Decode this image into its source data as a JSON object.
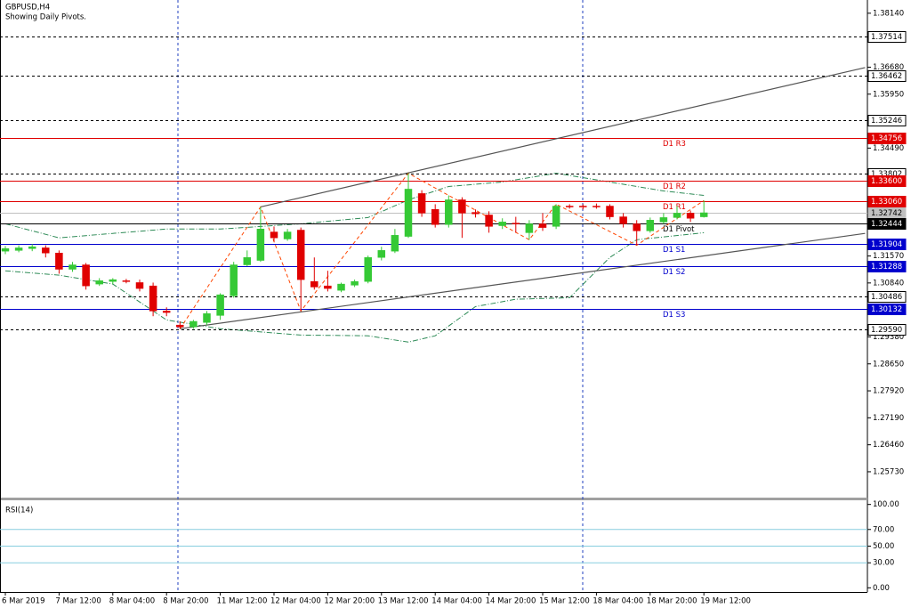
{
  "chart_data": [
    {
      "type": "candlestick",
      "title": "GBPUSD,H4",
      "subtitle": "Showing Daily Pivots.",
      "categories": [
        "6 Mar 2019",
        null,
        null,
        null,
        "7 Mar 12:00",
        null,
        null,
        null,
        "8 Mar 04:00",
        null,
        null,
        null,
        "8 Mar 20:00",
        null,
        null,
        null,
        "11 Mar 12:00",
        null,
        null,
        null,
        "12 Mar 04:00",
        null,
        null,
        null,
        "12 Mar 20:00",
        null,
        null,
        null,
        "13 Mar 12:00",
        null,
        null,
        null,
        "14 Mar 04:00",
        null,
        null,
        null,
        "14 Mar 20:00",
        null,
        null,
        null,
        "15 Mar 12:00",
        null,
        null,
        null,
        "18 Mar 04:00",
        null,
        null,
        null,
        "18 Mar 20:00",
        null,
        null,
        null,
        "19 Mar 12:00"
      ],
      "open": [
        1.317,
        1.3172,
        1.3177,
        1.3179,
        1.3165,
        1.3121,
        1.3133,
        1.3081,
        1.3088,
        1.309,
        1.3085,
        1.3076,
        1.3008,
        1.297,
        1.2965,
        1.2977,
        1.2996,
        1.3049,
        1.3133,
        1.3145,
        1.3222,
        1.3203,
        1.3227,
        1.3088,
        1.3076,
        1.3064,
        1.3078,
        1.3088,
        1.3153,
        1.317,
        1.321,
        1.3326,
        1.3283,
        1.3242,
        1.3309,
        1.3275,
        1.3268,
        1.3239,
        1.3246,
        1.322,
        1.3244,
        1.3237,
        1.3292,
        1.3292,
        1.3292,
        1.3292,
        1.3263,
        1.3244,
        1.3225,
        1.3249,
        1.3261,
        1.3273,
        1.3263
      ],
      "high": [
        1.3184,
        1.3186,
        1.3189,
        1.3186,
        1.3172,
        1.3141,
        1.3138,
        1.3097,
        1.3097,
        1.3095,
        1.3093,
        1.3085,
        1.3018,
        1.298,
        1.2984,
        1.3008,
        1.3056,
        1.3141,
        1.3172,
        1.329,
        1.3237,
        1.323,
        1.3234,
        1.3153,
        1.3117,
        1.3085,
        1.3093,
        1.3158,
        1.3182,
        1.323,
        1.3381,
        1.3335,
        1.3297,
        1.3321,
        1.3316,
        1.3283,
        1.3278,
        1.3259,
        1.3263,
        1.3254,
        1.3273,
        1.3297,
        1.3297,
        1.3297,
        1.3299,
        1.3297,
        1.3273,
        1.3254,
        1.3261,
        1.3273,
        1.3292,
        1.328,
        1.3307
      ],
      "low": [
        1.3162,
        1.3167,
        1.317,
        1.3153,
        1.3109,
        1.3114,
        1.3066,
        1.3076,
        1.3081,
        1.3083,
        1.3061,
        1.2994,
        1.2994,
        1.296,
        1.296,
        1.297,
        1.2984,
        1.3044,
        1.3129,
        1.3141,
        1.3196,
        1.3198,
        1.3008,
        1.3066,
        1.3061,
        1.3059,
        1.3073,
        1.3083,
        1.3145,
        1.3165,
        1.3206,
        1.3263,
        1.3234,
        1.3234,
        1.3206,
        1.3261,
        1.322,
        1.323,
        1.322,
        1.3201,
        1.3225,
        1.323,
        1.3285,
        1.3283,
        1.3285,
        1.3256,
        1.3234,
        1.3186,
        1.322,
        1.3244,
        1.3256,
        1.3249,
        1.3261
      ],
      "close": [
        1.3177,
        1.3179,
        1.3182,
        1.3165,
        1.3121,
        1.3133,
        1.3076,
        1.309,
        1.3093,
        1.3088,
        1.3069,
        1.3008,
        1.3004,
        1.2965,
        1.298,
        1.3001,
        1.3052,
        1.3133,
        1.3153,
        1.323,
        1.3206,
        1.3222,
        1.3093,
        1.3073,
        1.3069,
        1.3081,
        1.3088,
        1.3153,
        1.3172,
        1.3213,
        1.3338,
        1.3273,
        1.3242,
        1.3309,
        1.3273,
        1.3271,
        1.3237,
        1.3249,
        1.3244,
        1.3244,
        1.3234,
        1.3292,
        1.329,
        1.329,
        1.329,
        1.3263,
        1.3244,
        1.3225,
        1.3254,
        1.3261,
        1.3273,
        1.3259,
        1.3274
      ],
      "up_color": "#35c935",
      "down_color": "#e00000",
      "ylim": [
        1.2503,
        1.3845
      ],
      "yticks": [
        {
          "value": 1.3814,
          "label": "1.38140"
        },
        {
          "value": 1.3668,
          "label": "1.36680"
        },
        {
          "value": 1.3595,
          "label": "1.35950"
        },
        {
          "value": 1.3449,
          "label": "1.34490"
        },
        {
          "value": 1.3157,
          "label": "1.31570"
        },
        {
          "value": 1.3084,
          "label": "1.30840"
        },
        {
          "value": 1.2938,
          "label": "1.29380"
        },
        {
          "value": 1.2865,
          "label": "1.28650"
        },
        {
          "value": 1.2792,
          "label": "1.27920"
        },
        {
          "value": 1.2719,
          "label": "1.27190"
        },
        {
          "value": 1.2646,
          "label": "1.26460"
        },
        {
          "value": 1.2573,
          "label": "1.25730"
        }
      ],
      "levels": [
        {
          "value": 1.37514,
          "value_label": "1.37514",
          "color": "#000000",
          "style": "dashed"
        },
        {
          "value": 1.36462,
          "value_label": "1.36462",
          "color": "#000000",
          "style": "dashed"
        },
        {
          "value": 1.35246,
          "value_label": "1.35246",
          "color": "#000000",
          "style": "dashed"
        },
        {
          "value": 1.34756,
          "value_label": "1.34756",
          "name": "D1 R3",
          "color": "#e00000",
          "style": "solid"
        },
        {
          "value": 1.33802,
          "value_label": "1.33802",
          "color": "#000000",
          "style": "dashed"
        },
        {
          "value": 1.336,
          "value_label": "1.33600",
          "name": "D1 R2",
          "color": "#e00000",
          "style": "solid"
        },
        {
          "value": 1.3306,
          "value_label": "1.33060",
          "name": "D1 R1",
          "color": "#e00000",
          "style": "solid"
        },
        {
          "value": 1.32742,
          "value_label": "1.32742",
          "color": "#c0c0c0",
          "style": "solid"
        },
        {
          "value": 1.32444,
          "value_label": "1.32444",
          "name": "D1 Pivot",
          "color": "#000000",
          "style": "solid"
        },
        {
          "value": 1.31904,
          "value_label": "1.31904",
          "name": "D1 S1",
          "color": "#0000cd",
          "style": "solid"
        },
        {
          "value": 1.31288,
          "value_label": "1.31288",
          "name": "D1 S2",
          "color": "#0000cd",
          "style": "solid"
        },
        {
          "value": 1.30486,
          "value_label": "1.30486",
          "color": "#000000",
          "style": "dashed"
        },
        {
          "value": 1.30132,
          "value_label": "1.30132",
          "name": "D1 S3",
          "color": "#0000cd",
          "style": "solid"
        },
        {
          "value": 1.2959,
          "value_label": "1.29590",
          "color": "#000000",
          "style": "dashed"
        }
      ],
      "trendlines": [
        {
          "x": [
            19,
            64
          ],
          "values": [
            1.329,
            1.3667
          ],
          "color": "#555555"
        },
        {
          "x": [
            13,
            64
          ],
          "values": [
            1.296,
            1.3218
          ],
          "color": "#555555"
        }
      ],
      "zigzag": {
        "x": [
          13,
          19,
          22,
          30,
          39,
          41,
          47,
          52
        ],
        "values": [
          1.296,
          1.329,
          1.3008,
          1.3381,
          1.3201,
          1.3297,
          1.3186,
          1.3307
        ],
        "color": "#ff4500"
      },
      "bands": [
        {
          "x": [
            0,
            4,
            8,
            12,
            16,
            19,
            22,
            27,
            30,
            33,
            37,
            41,
            45,
            49,
            52
          ],
          "values": [
            1.3244,
            1.3206,
            1.3218,
            1.323,
            1.323,
            1.3237,
            1.3244,
            1.3261,
            1.3309,
            1.3345,
            1.3357,
            1.3381,
            1.3357,
            1.3333,
            1.3321
          ],
          "color": "#2e8b57"
        },
        {
          "x": [
            0,
            4,
            8,
            12,
            16,
            22,
            27,
            30,
            32,
            35,
            38,
            42,
            45,
            47,
            52
          ],
          "values": [
            1.3117,
            1.3105,
            1.3081,
            1.2984,
            1.296,
            1.2943,
            1.2941,
            1.2924,
            1.2941,
            1.302,
            1.304,
            1.3044,
            1.3153,
            1.3201,
            1.322
          ],
          "color": "#2e8b57"
        }
      ]
    },
    {
      "type": "rsi",
      "title": "RSI(14)",
      "ylim": [
        -5,
        105
      ],
      "yticks": [
        {
          "value": 100,
          "label": "100.00"
        },
        {
          "value": 70,
          "label": "70.00"
        },
        {
          "value": 50,
          "label": "50.00"
        },
        {
          "value": 30,
          "label": "30.00"
        },
        {
          "value": 0,
          "label": "0.00"
        }
      ],
      "levels": [
        70,
        50,
        30
      ],
      "level_color": "#87cedf"
    }
  ]
}
